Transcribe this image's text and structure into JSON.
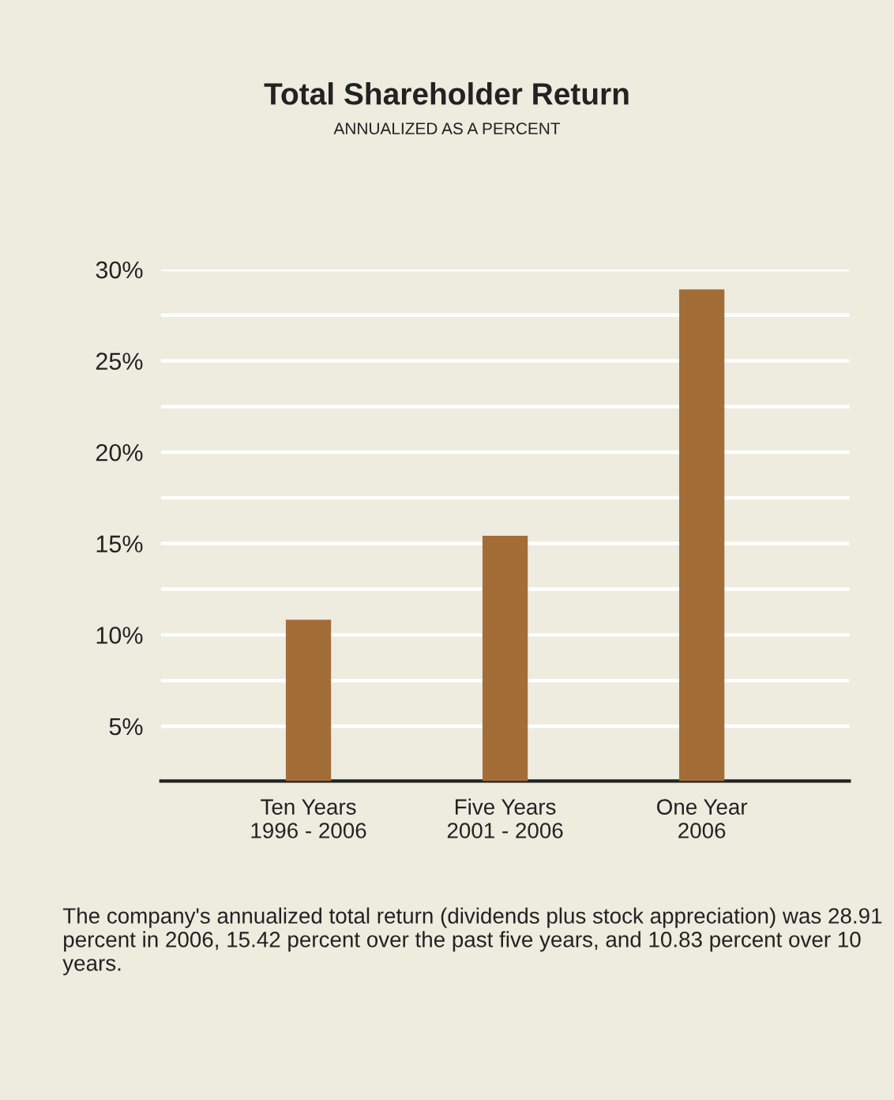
{
  "chart_data": {
    "type": "bar",
    "title": "Total Shareholder Return",
    "subtitle": "ANNUALIZED AS A PERCENT",
    "categories": [
      "Ten Years\n1996 - 2006",
      "Five Years\n2001 - 2006",
      "One Year\n2006"
    ],
    "values": [
      10.83,
      15.42,
      28.91
    ],
    "color": "#a36d37",
    "ylim": [
      2,
      30
    ],
    "yticks": [
      {
        "value": 5,
        "label": "5%"
      },
      {
        "value": 7.5,
        "label": null
      },
      {
        "value": 10,
        "label": "10%"
      },
      {
        "value": 12.5,
        "label": null
      },
      {
        "value": 15,
        "label": "15%"
      },
      {
        "value": 17.5,
        "label": null
      },
      {
        "value": 20,
        "label": "20%"
      },
      {
        "value": 22.5,
        "label": null
      },
      {
        "value": 25,
        "label": "25%"
      },
      {
        "value": 27.5,
        "label": null
      },
      {
        "value": 30,
        "label": "30%"
      }
    ],
    "grid": "y",
    "annotations": [
      "The company's annualized total return (dividends plus stock appreciation) was 28.91 percent in 2006, 15.42 percent over the past five years, and 10.83 percent over 10 years."
    ]
  }
}
